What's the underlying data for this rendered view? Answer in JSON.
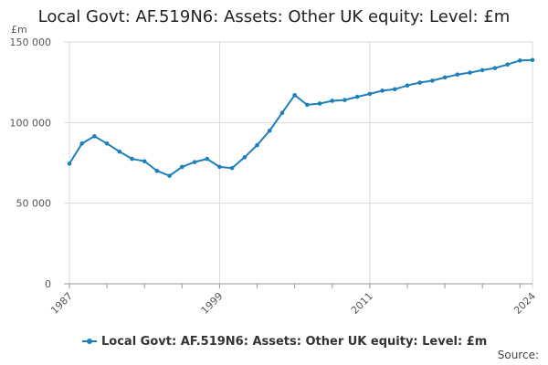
{
  "chart_data": {
    "type": "line",
    "title": "Local Govt: AF.519N6: Assets: Other UK equity: Level: £m",
    "unit_label": "£m",
    "source_label": "Source:",
    "color": "#1f7fba",
    "ylim": [
      0,
      150000
    ],
    "yticks": [
      {
        "value": 0,
        "label": "0"
      },
      {
        "value": 50000,
        "label": "50 000"
      },
      {
        "value": 100000,
        "label": "100 000"
      },
      {
        "value": 150000,
        "label": "150 000"
      }
    ],
    "xlim": [
      1987,
      2024
    ],
    "xticks": [
      {
        "value": 1987,
        "label": "1987"
      },
      {
        "value": 1999,
        "label": "1999"
      },
      {
        "value": 2011,
        "label": "2011"
      },
      {
        "value": 2024,
        "label": "2024"
      }
    ],
    "minor_xticks": [
      1987,
      1990,
      1993,
      1996,
      1999,
      2002,
      2005,
      2008,
      2011,
      2014,
      2017,
      2020,
      2023
    ],
    "grid": "horizontal",
    "legend_position": "bottom",
    "series": [
      {
        "name": "Local Govt: AF.519N6: Assets: Other UK equity: Level: £m",
        "x": [
          1987,
          1988,
          1989,
          1990,
          1991,
          1992,
          1993,
          1994,
          1995,
          1996,
          1997,
          1998,
          1999,
          2000,
          2001,
          2002,
          2003,
          2004,
          2005,
          2006,
          2007,
          2008,
          2009,
          2010,
          2011,
          2012,
          2013,
          2014,
          2015,
          2016,
          2017,
          2018,
          2019,
          2020,
          2021,
          2022,
          2023,
          2024
        ],
        "values": [
          74500,
          87000,
          91500,
          87000,
          82000,
          77500,
          76000,
          70000,
          67000,
          72500,
          75500,
          77500,
          72500,
          71800,
          78500,
          86000,
          95000,
          106000,
          117000,
          111000,
          111800,
          113500,
          114000,
          116000,
          117800,
          119800,
          120700,
          123000,
          124800,
          126000,
          128000,
          129800,
          131000,
          132500,
          133800,
          136000,
          138500,
          138800
        ]
      }
    ]
  }
}
